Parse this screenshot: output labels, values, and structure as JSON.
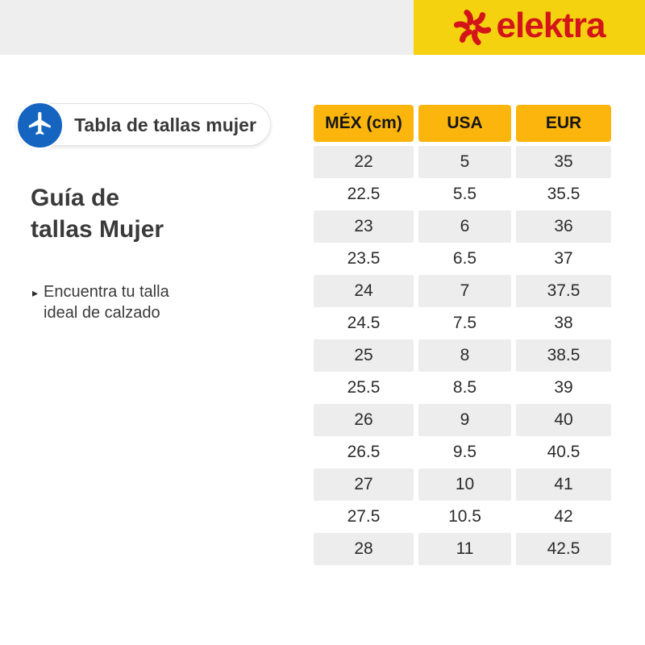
{
  "brand": {
    "logo_text": "elektra",
    "logo_icon": "pinwheel-icon",
    "logo_color": "#d31418",
    "topbar_yellow": "#f5d20f",
    "topbar_gray": "#eeeeee"
  },
  "badge": {
    "label": "Tabla de tallas mujer",
    "icon": "airplane-icon",
    "circle_color": "#1565c0"
  },
  "heading": {
    "line1": "Guía de",
    "line2": "tallas Mujer"
  },
  "bullet": {
    "marker": "▸",
    "line1": "Encuentra tu talla",
    "line2": "ideal de calzado"
  },
  "table": {
    "header_bg": "#fbb50c",
    "row_alt_bg": "#ededed",
    "columns": [
      "MÉX (cm)",
      "USA",
      "EUR"
    ],
    "rows": [
      [
        "22",
        "5",
        "35"
      ],
      [
        "22.5",
        "5.5",
        "35.5"
      ],
      [
        "23",
        "6",
        "36"
      ],
      [
        "23.5",
        "6.5",
        "37"
      ],
      [
        "24",
        "7",
        "37.5"
      ],
      [
        "24.5",
        "7.5",
        "38"
      ],
      [
        "25",
        "8",
        "38.5"
      ],
      [
        "25.5",
        "8.5",
        "39"
      ],
      [
        "26",
        "9",
        "40"
      ],
      [
        "26.5",
        "9.5",
        "40.5"
      ],
      [
        "27",
        "10",
        "41"
      ],
      [
        "27.5",
        "10.5",
        "42"
      ],
      [
        "28",
        "11",
        "42.5"
      ]
    ]
  }
}
